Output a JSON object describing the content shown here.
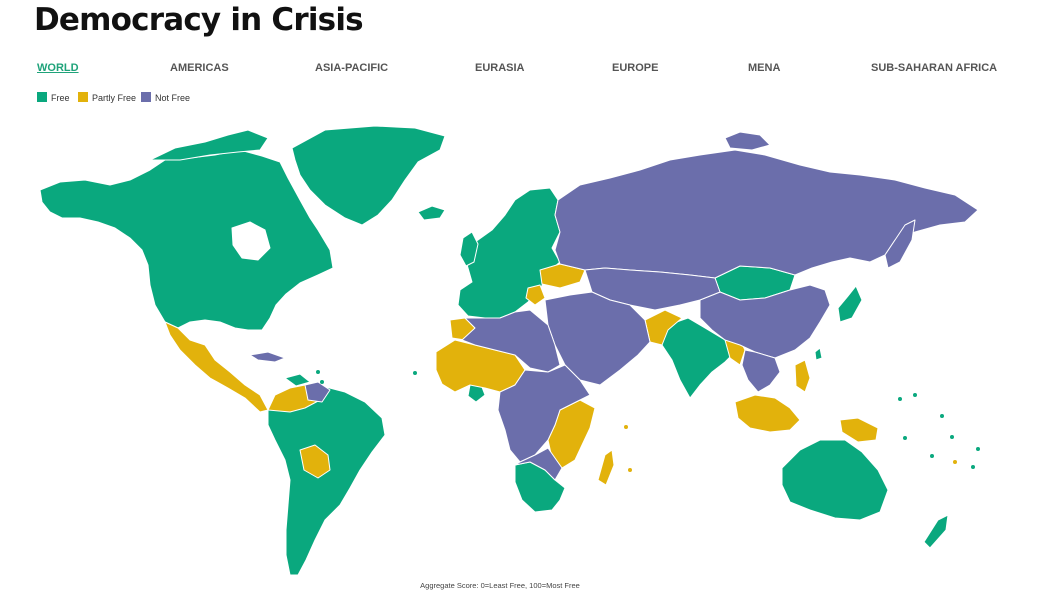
{
  "page": {
    "title": "Democracy in Crisis"
  },
  "tabs": [
    {
      "label": "WORLD",
      "active": true
    },
    {
      "label": "AMERICAS",
      "active": false
    },
    {
      "label": "ASIA-PACIFIC",
      "active": false
    },
    {
      "label": "EURASIA",
      "active": false
    },
    {
      "label": "EUROPE",
      "active": false
    },
    {
      "label": "MENA",
      "active": false
    },
    {
      "label": "SUB-SAHARAN AFRICA",
      "active": false
    }
  ],
  "legend": [
    {
      "label": "Free",
      "color": "#0aa87e"
    },
    {
      "label": "Partly Free",
      "color": "#e2b20c"
    },
    {
      "label": "Not Free",
      "color": "#6b6eab"
    }
  ],
  "map": {
    "region": "World",
    "border_color": "#ffffff"
  },
  "caption": "Aggregate Score: 0=Least Free, 100=Most Free"
}
